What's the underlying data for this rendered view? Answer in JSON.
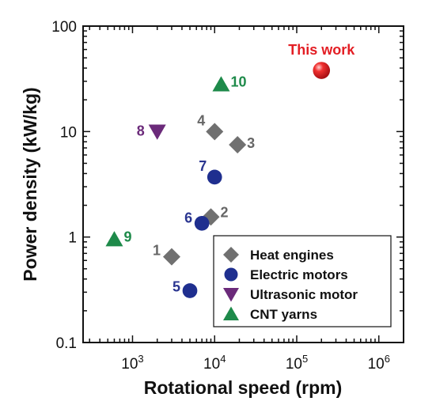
{
  "chart_data": {
    "type": "scatter",
    "x_scale": "log",
    "y_scale": "log",
    "xlabel": "Rotational speed (rpm)",
    "ylabel": "Power density (kW/kg)",
    "xlim": [
      250,
      2000000
    ],
    "ylim": [
      0.1,
      100
    ],
    "x_ticks": [
      {
        "value": 1000,
        "base": "10",
        "exp": "3"
      },
      {
        "value": 10000,
        "base": "10",
        "exp": "4"
      },
      {
        "value": 100000,
        "base": "10",
        "exp": "5"
      },
      {
        "value": 1000000,
        "base": "10",
        "exp": "6"
      }
    ],
    "y_ticks": [
      {
        "value": 0.1,
        "label": "0.1"
      },
      {
        "value": 1,
        "label": "1"
      },
      {
        "value": 10,
        "label": "10"
      },
      {
        "value": 100,
        "label": "100"
      }
    ],
    "grid": false,
    "legend_position": "bottom-right",
    "series": [
      {
        "name": "Heat engines",
        "marker": "diamond",
        "color": "#707070",
        "label_color": "#666666",
        "points": [
          {
            "label": "1",
            "x": 3000,
            "y": 0.65
          },
          {
            "label": "2",
            "x": 9000,
            "y": 1.55
          },
          {
            "label": "3",
            "x": 19000,
            "y": 7.5
          },
          {
            "label": "4",
            "x": 10000,
            "y": 10
          }
        ]
      },
      {
        "name": "Electric motors",
        "marker": "circle",
        "color": "#1f2f8f",
        "label_color": "#2a3590",
        "points": [
          {
            "label": "5",
            "x": 5000,
            "y": 0.31
          },
          {
            "label": "6",
            "x": 7000,
            "y": 1.35
          },
          {
            "label": "7",
            "x": 10000,
            "y": 3.7
          }
        ]
      },
      {
        "name": "Ultrasonic motor",
        "marker": "triangle-down",
        "color": "#6b2a7a",
        "label_color": "#6b2a7a",
        "points": [
          {
            "label": "8",
            "x": 2000,
            "y": 10
          }
        ]
      },
      {
        "name": "CNT yarns",
        "marker": "triangle-up",
        "color": "#1e8a4a",
        "label_color": "#1e8a4a",
        "points": [
          {
            "label": "9",
            "x": 600,
            "y": 0.95
          },
          {
            "label": "10",
            "x": 12000,
            "y": 28
          }
        ]
      },
      {
        "name": "This work",
        "marker": "sphere",
        "color": "#e31e24",
        "label_color": "#e31e24",
        "in_legend": false,
        "points": [
          {
            "label": "This work",
            "x": 200000,
            "y": 38
          }
        ]
      }
    ]
  }
}
